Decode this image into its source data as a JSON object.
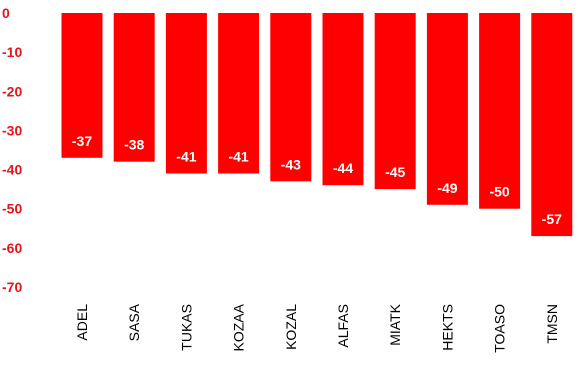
{
  "chart_data": {
    "type": "bar",
    "categories": [
      "ADEL",
      "SASA",
      "TUKAS",
      "KOZAA",
      "KOZAL",
      "ALFAS",
      "MIATK",
      "HEKTS",
      "TOASO",
      "TMSN"
    ],
    "series": [
      {
        "values": [
          -37,
          -38,
          -41,
          -41,
          -43,
          -44,
          -45,
          -49,
          -50,
          -57
        ],
        "color": "#ff0000"
      }
    ],
    "data_labels": [
      "-37",
      "-38",
      "-41",
      "-41",
      "-43",
      "-44",
      "-45",
      "-49",
      "-50",
      "-57"
    ],
    "ylim": [
      -70,
      0
    ],
    "yticks": [
      0,
      -10,
      -20,
      -30,
      -40,
      -50,
      -60,
      -70
    ],
    "title": "",
    "xlabel": "",
    "ylabel": "",
    "grid": false,
    "legend": "none",
    "tick_label_color": "#e8131b",
    "category_label_color": "#000000",
    "data_label_color": "#ffffff"
  }
}
